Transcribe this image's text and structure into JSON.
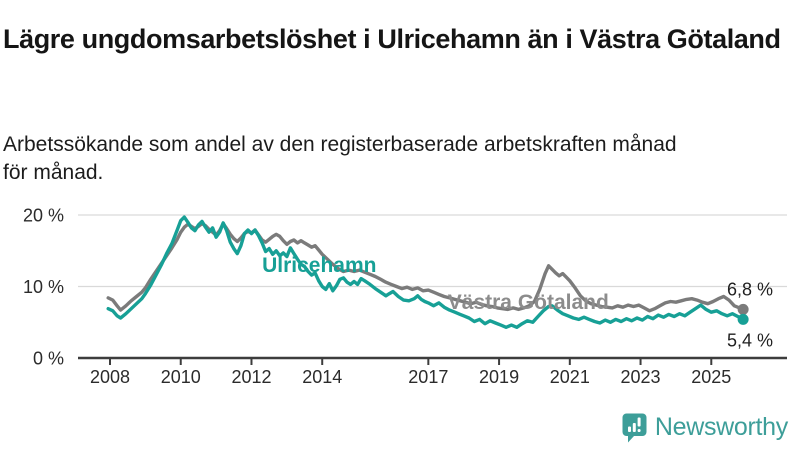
{
  "chart_data": {
    "type": "line",
    "title": "Lägre ungdomsarbetslöshet i Ulricehamn än i Västra Götaland",
    "subtitle": "Arbetssökande som andel av den registerbaserade arbetskraften månad för månad.",
    "unit": "%",
    "grid": "horizontal",
    "legend": "inline-labels",
    "x_ticks": [
      "2008",
      "2010",
      "2012",
      "2014",
      "2017",
      "2019",
      "2021",
      "2023",
      "2025"
    ],
    "y_ticks": [
      {
        "value": 0,
        "label": "0 %"
      },
      {
        "value": 10,
        "label": "10 %"
      },
      {
        "value": 20,
        "label": "20 %"
      }
    ],
    "xlim": [
      2007.9,
      2026.2
    ],
    "ylim": [
      0,
      21
    ],
    "series": [
      {
        "name": "Västra Götaland",
        "color": "#7b7b7b",
        "label_color": "#8c8c8c",
        "end_label": "6,8 %",
        "end_value": 6.8,
        "label_pos": {
          "year": 2017.55,
          "value": 6.85
        },
        "end_label_offset": -14,
        "points": [
          [
            2007.95,
            8.4
          ],
          [
            2008.08,
            8.1
          ],
          [
            2008.2,
            7.3
          ],
          [
            2008.3,
            6.7
          ],
          [
            2008.45,
            7.3
          ],
          [
            2008.6,
            8.0
          ],
          [
            2008.75,
            8.6
          ],
          [
            2008.9,
            9.2
          ],
          [
            2009.0,
            9.8
          ],
          [
            2009.15,
            11.0
          ],
          [
            2009.3,
            12.1
          ],
          [
            2009.45,
            13.2
          ],
          [
            2009.6,
            14.3
          ],
          [
            2009.75,
            15.4
          ],
          [
            2009.9,
            16.6
          ],
          [
            2010.0,
            17.6
          ],
          [
            2010.1,
            18.3
          ],
          [
            2010.2,
            18.7
          ],
          [
            2010.3,
            18.4
          ],
          [
            2010.4,
            18.1
          ],
          [
            2010.5,
            18.4
          ],
          [
            2010.6,
            18.8
          ],
          [
            2010.7,
            18.5
          ],
          [
            2010.8,
            18.0
          ],
          [
            2010.9,
            17.6
          ],
          [
            2011.0,
            17.2
          ],
          [
            2011.1,
            17.8
          ],
          [
            2011.2,
            18.8
          ],
          [
            2011.3,
            18.1
          ],
          [
            2011.4,
            17.3
          ],
          [
            2011.5,
            16.7
          ],
          [
            2011.6,
            16.3
          ],
          [
            2011.7,
            16.8
          ],
          [
            2011.8,
            17.4
          ],
          [
            2011.9,
            17.7
          ],
          [
            2012.0,
            17.5
          ],
          [
            2012.1,
            17.9
          ],
          [
            2012.2,
            17.2
          ],
          [
            2012.3,
            16.5
          ],
          [
            2012.4,
            16.2
          ],
          [
            2012.5,
            16.6
          ],
          [
            2012.6,
            17.0
          ],
          [
            2012.7,
            17.3
          ],
          [
            2012.8,
            17.0
          ],
          [
            2012.9,
            16.4
          ],
          [
            2013.0,
            15.9
          ],
          [
            2013.1,
            16.3
          ],
          [
            2013.2,
            16.5
          ],
          [
            2013.3,
            16.1
          ],
          [
            2013.4,
            16.4
          ],
          [
            2013.5,
            16.1
          ],
          [
            2013.6,
            15.8
          ],
          [
            2013.7,
            15.5
          ],
          [
            2013.8,
            15.7
          ],
          [
            2013.9,
            15.1
          ],
          [
            2014.0,
            14.5
          ],
          [
            2014.15,
            13.8
          ],
          [
            2014.3,
            13.1
          ],
          [
            2014.45,
            12.5
          ],
          [
            2014.6,
            12.1
          ],
          [
            2014.75,
            12.3
          ],
          [
            2014.9,
            12.1
          ],
          [
            2015.05,
            12.3
          ],
          [
            2015.2,
            12.0
          ],
          [
            2015.35,
            11.7
          ],
          [
            2015.5,
            11.4
          ],
          [
            2015.65,
            11.0
          ],
          [
            2015.8,
            10.6
          ],
          [
            2015.95,
            10.3
          ],
          [
            2016.1,
            10.0
          ],
          [
            2016.25,
            9.7
          ],
          [
            2016.4,
            9.9
          ],
          [
            2016.55,
            9.6
          ],
          [
            2016.7,
            9.8
          ],
          [
            2016.85,
            9.4
          ],
          [
            2017.0,
            9.5
          ],
          [
            2017.15,
            9.2
          ],
          [
            2017.3,
            8.9
          ],
          [
            2017.45,
            8.6
          ],
          [
            2017.6,
            8.4
          ],
          [
            2017.75,
            8.2
          ],
          [
            2017.9,
            8.0
          ],
          [
            2018.05,
            7.8
          ],
          [
            2018.2,
            7.6
          ],
          [
            2018.35,
            7.8
          ],
          [
            2018.5,
            7.5
          ],
          [
            2018.65,
            7.3
          ],
          [
            2018.8,
            7.2
          ],
          [
            2018.95,
            7.0
          ],
          [
            2019.1,
            6.9
          ],
          [
            2019.25,
            6.8
          ],
          [
            2019.4,
            7.0
          ],
          [
            2019.55,
            6.8
          ],
          [
            2019.7,
            7.0
          ],
          [
            2019.85,
            7.3
          ],
          [
            2020.0,
            7.9
          ],
          [
            2020.15,
            9.6
          ],
          [
            2020.3,
            11.8
          ],
          [
            2020.4,
            12.9
          ],
          [
            2020.5,
            12.4
          ],
          [
            2020.6,
            11.9
          ],
          [
            2020.7,
            11.5
          ],
          [
            2020.8,
            11.8
          ],
          [
            2020.9,
            11.3
          ],
          [
            2021.0,
            10.8
          ],
          [
            2021.15,
            9.8
          ],
          [
            2021.3,
            8.7
          ],
          [
            2021.45,
            8.0
          ],
          [
            2021.6,
            7.6
          ],
          [
            2021.75,
            7.4
          ],
          [
            2021.9,
            7.2
          ],
          [
            2022.05,
            7.1
          ],
          [
            2022.2,
            7.0
          ],
          [
            2022.35,
            7.3
          ],
          [
            2022.5,
            7.1
          ],
          [
            2022.65,
            7.4
          ],
          [
            2022.8,
            7.2
          ],
          [
            2022.95,
            7.4
          ],
          [
            2023.1,
            7.0
          ],
          [
            2023.25,
            6.6
          ],
          [
            2023.4,
            6.9
          ],
          [
            2023.55,
            7.3
          ],
          [
            2023.7,
            7.7
          ],
          [
            2023.85,
            7.9
          ],
          [
            2024.0,
            7.8
          ],
          [
            2024.15,
            8.0
          ],
          [
            2024.3,
            8.2
          ],
          [
            2024.45,
            8.3
          ],
          [
            2024.6,
            8.1
          ],
          [
            2024.75,
            7.8
          ],
          [
            2024.9,
            7.6
          ],
          [
            2025.05,
            7.9
          ],
          [
            2025.2,
            8.3
          ],
          [
            2025.35,
            8.6
          ],
          [
            2025.5,
            8.1
          ],
          [
            2025.65,
            7.3
          ],
          [
            2025.8,
            7.0
          ],
          [
            2025.9,
            6.8
          ]
        ]
      },
      {
        "name": "Ulricehamn",
        "color": "#17a096",
        "label_color": "#17a096",
        "end_label": "5,4 %",
        "end_value": 5.4,
        "label_pos": {
          "year": 2012.3,
          "value": 12.0
        },
        "end_label_offset": 27,
        "points": [
          [
            2007.95,
            6.9
          ],
          [
            2008.08,
            6.6
          ],
          [
            2008.2,
            5.9
          ],
          [
            2008.3,
            5.6
          ],
          [
            2008.45,
            6.2
          ],
          [
            2008.6,
            6.9
          ],
          [
            2008.75,
            7.6
          ],
          [
            2008.9,
            8.3
          ],
          [
            2009.0,
            9.0
          ],
          [
            2009.15,
            10.2
          ],
          [
            2009.3,
            11.6
          ],
          [
            2009.45,
            13.0
          ],
          [
            2009.6,
            14.6
          ],
          [
            2009.75,
            16.0
          ],
          [
            2009.9,
            17.9
          ],
          [
            2010.0,
            19.2
          ],
          [
            2010.1,
            19.7
          ],
          [
            2010.2,
            19.0
          ],
          [
            2010.3,
            18.2
          ],
          [
            2010.4,
            17.8
          ],
          [
            2010.5,
            18.6
          ],
          [
            2010.6,
            19.1
          ],
          [
            2010.7,
            18.3
          ],
          [
            2010.8,
            17.6
          ],
          [
            2010.9,
            18.2
          ],
          [
            2011.0,
            16.9
          ],
          [
            2011.1,
            17.6
          ],
          [
            2011.2,
            18.9
          ],
          [
            2011.3,
            17.8
          ],
          [
            2011.4,
            16.2
          ],
          [
            2011.5,
            15.3
          ],
          [
            2011.6,
            14.6
          ],
          [
            2011.7,
            15.7
          ],
          [
            2011.8,
            17.4
          ],
          [
            2011.9,
            17.9
          ],
          [
            2012.0,
            17.4
          ],
          [
            2012.1,
            17.9
          ],
          [
            2012.2,
            17.1
          ],
          [
            2012.3,
            16.1
          ],
          [
            2012.4,
            14.9
          ],
          [
            2012.5,
            15.3
          ],
          [
            2012.6,
            14.5
          ],
          [
            2012.7,
            15.0
          ],
          [
            2012.8,
            14.3
          ],
          [
            2012.9,
            14.7
          ],
          [
            2013.0,
            14.2
          ],
          [
            2013.1,
            15.4
          ],
          [
            2013.2,
            14.6
          ],
          [
            2013.3,
            13.8
          ],
          [
            2013.4,
            13.1
          ],
          [
            2013.5,
            12.8
          ],
          [
            2013.6,
            12.1
          ],
          [
            2013.7,
            11.6
          ],
          [
            2013.8,
            11.9
          ],
          [
            2013.9,
            10.8
          ],
          [
            2014.0,
            10.0
          ],
          [
            2014.1,
            9.6
          ],
          [
            2014.2,
            10.4
          ],
          [
            2014.3,
            9.4
          ],
          [
            2014.4,
            10.1
          ],
          [
            2014.5,
            11.0
          ],
          [
            2014.6,
            11.2
          ],
          [
            2014.7,
            10.6
          ],
          [
            2014.8,
            10.3
          ],
          [
            2014.9,
            10.7
          ],
          [
            2015.0,
            10.3
          ],
          [
            2015.1,
            11.1
          ],
          [
            2015.2,
            10.8
          ],
          [
            2015.35,
            10.3
          ],
          [
            2015.5,
            9.7
          ],
          [
            2015.65,
            9.2
          ],
          [
            2015.8,
            8.7
          ],
          [
            2015.9,
            9.0
          ],
          [
            2016.0,
            9.3
          ],
          [
            2016.15,
            8.6
          ],
          [
            2016.3,
            8.1
          ],
          [
            2016.45,
            8.0
          ],
          [
            2016.6,
            8.3
          ],
          [
            2016.7,
            8.7
          ],
          [
            2016.8,
            8.2
          ],
          [
            2016.9,
            7.9
          ],
          [
            2017.0,
            7.7
          ],
          [
            2017.15,
            7.3
          ],
          [
            2017.3,
            7.7
          ],
          [
            2017.45,
            7.1
          ],
          [
            2017.6,
            6.7
          ],
          [
            2017.75,
            6.4
          ],
          [
            2017.9,
            6.1
          ],
          [
            2018.0,
            5.9
          ],
          [
            2018.15,
            5.6
          ],
          [
            2018.3,
            5.1
          ],
          [
            2018.45,
            5.4
          ],
          [
            2018.6,
            4.8
          ],
          [
            2018.75,
            5.2
          ],
          [
            2018.9,
            4.9
          ],
          [
            2019.05,
            4.6
          ],
          [
            2019.2,
            4.3
          ],
          [
            2019.35,
            4.6
          ],
          [
            2019.5,
            4.3
          ],
          [
            2019.65,
            4.8
          ],
          [
            2019.8,
            5.2
          ],
          [
            2019.95,
            5.0
          ],
          [
            2020.1,
            5.8
          ],
          [
            2020.25,
            6.6
          ],
          [
            2020.4,
            7.2
          ],
          [
            2020.5,
            7.3
          ],
          [
            2020.65,
            6.7
          ],
          [
            2020.8,
            6.2
          ],
          [
            2020.95,
            5.9
          ],
          [
            2021.1,
            5.6
          ],
          [
            2021.25,
            5.4
          ],
          [
            2021.4,
            5.7
          ],
          [
            2021.55,
            5.4
          ],
          [
            2021.7,
            5.1
          ],
          [
            2021.85,
            4.9
          ],
          [
            2022.0,
            5.3
          ],
          [
            2022.15,
            5.0
          ],
          [
            2022.3,
            5.4
          ],
          [
            2022.45,
            5.1
          ],
          [
            2022.6,
            5.5
          ],
          [
            2022.75,
            5.2
          ],
          [
            2022.9,
            5.6
          ],
          [
            2023.05,
            5.3
          ],
          [
            2023.2,
            5.8
          ],
          [
            2023.35,
            5.5
          ],
          [
            2023.5,
            6.0
          ],
          [
            2023.65,
            5.7
          ],
          [
            2023.8,
            6.1
          ],
          [
            2023.95,
            5.8
          ],
          [
            2024.1,
            6.2
          ],
          [
            2024.25,
            5.9
          ],
          [
            2024.4,
            6.4
          ],
          [
            2024.55,
            6.9
          ],
          [
            2024.7,
            7.4
          ],
          [
            2024.85,
            6.8
          ],
          [
            2025.0,
            6.4
          ],
          [
            2025.15,
            6.6
          ],
          [
            2025.3,
            6.2
          ],
          [
            2025.45,
            5.9
          ],
          [
            2025.6,
            6.2
          ],
          [
            2025.75,
            5.8
          ],
          [
            2025.9,
            5.4
          ]
        ]
      }
    ]
  },
  "colors": {
    "axis": "#3d3d3d",
    "gridline": "#d9d9d9",
    "tick_text": "#2b2b2b",
    "end_label_text": "#1f1f1f"
  },
  "footer": {
    "brand": "Newsworthy",
    "brand_color": "#3d9e99",
    "logo_icon": "bar-chart-speech-bubble-icon"
  }
}
